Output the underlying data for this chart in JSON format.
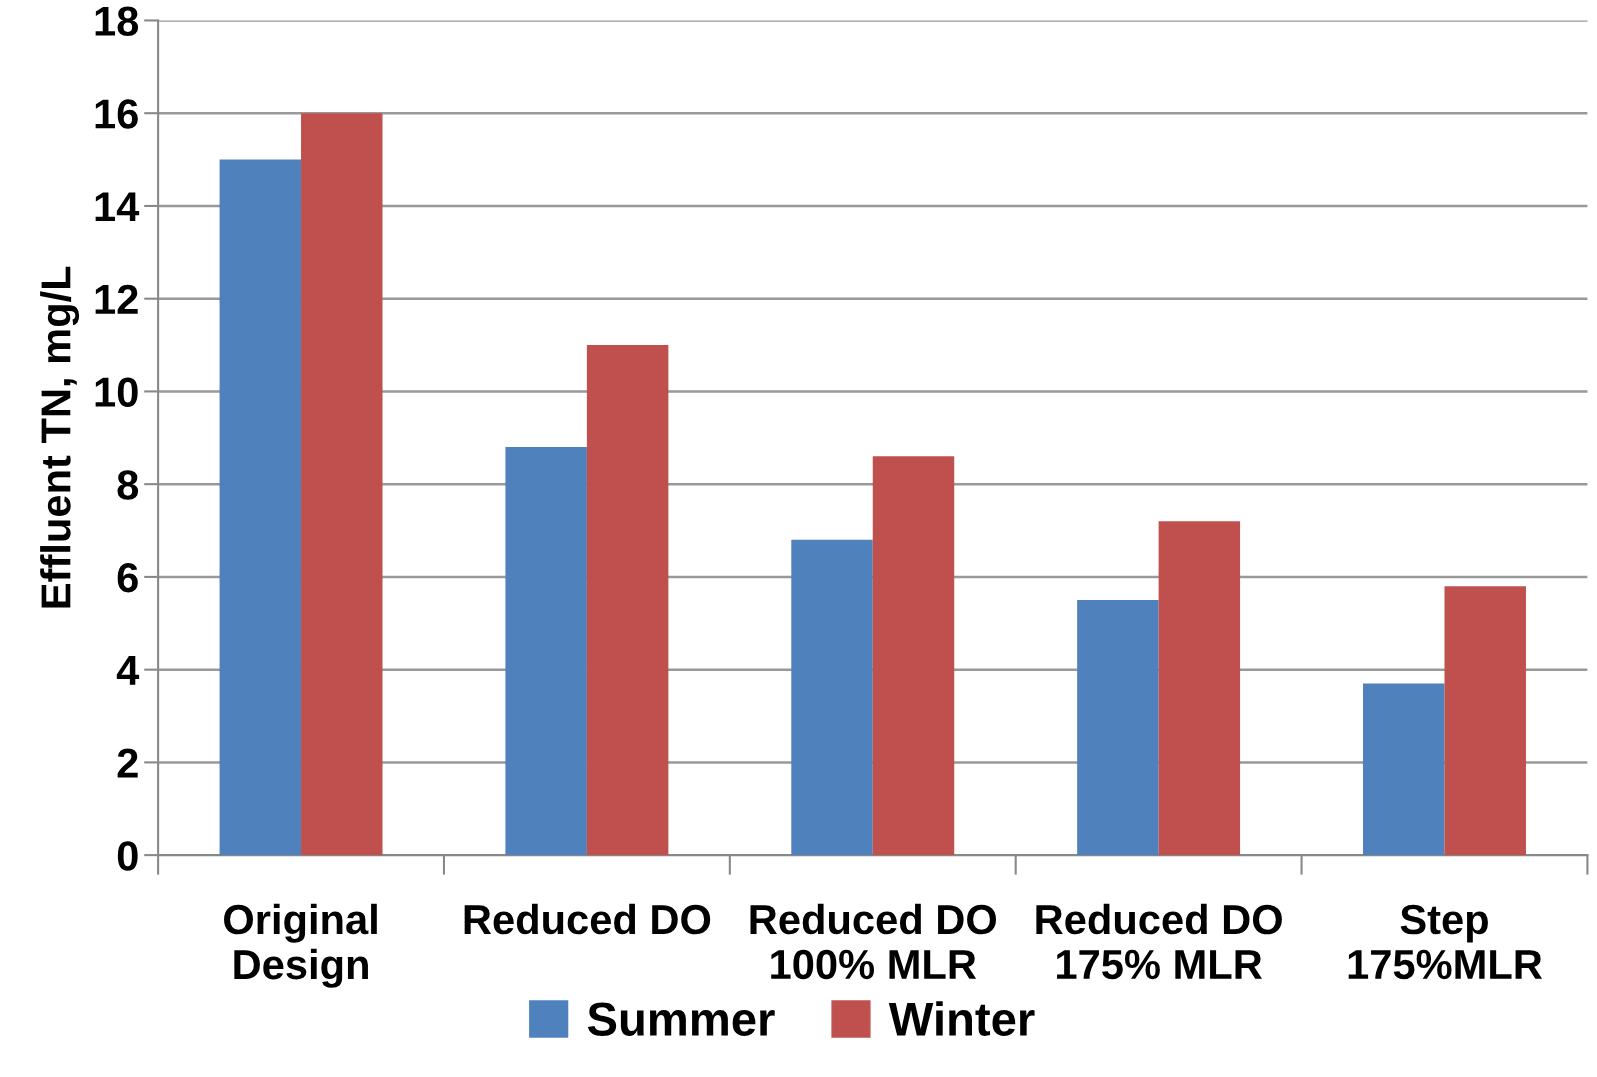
{
  "chart_data": {
    "type": "bar",
    "ylabel": "Effluent TN, mg/L",
    "categories": [
      "Original\nDesign",
      "Reduced DO",
      "Reduced DO\n100% MLR",
      "Reduced DO\n175% MLR",
      "Step\n175%MLR"
    ],
    "series": [
      {
        "name": "Summer",
        "color": "#4f81bd",
        "values": [
          15,
          8.8,
          6.8,
          5.5,
          3.7
        ]
      },
      {
        "name": "Winter",
        "color": "#c0504d",
        "values": [
          16,
          11,
          8.6,
          7.2,
          5.8
        ]
      }
    ],
    "ylim": [
      0,
      18
    ],
    "yticks": [
      0,
      2,
      4,
      6,
      8,
      10,
      12,
      14,
      16,
      18
    ],
    "grid": "y",
    "legend": "bottom"
  }
}
